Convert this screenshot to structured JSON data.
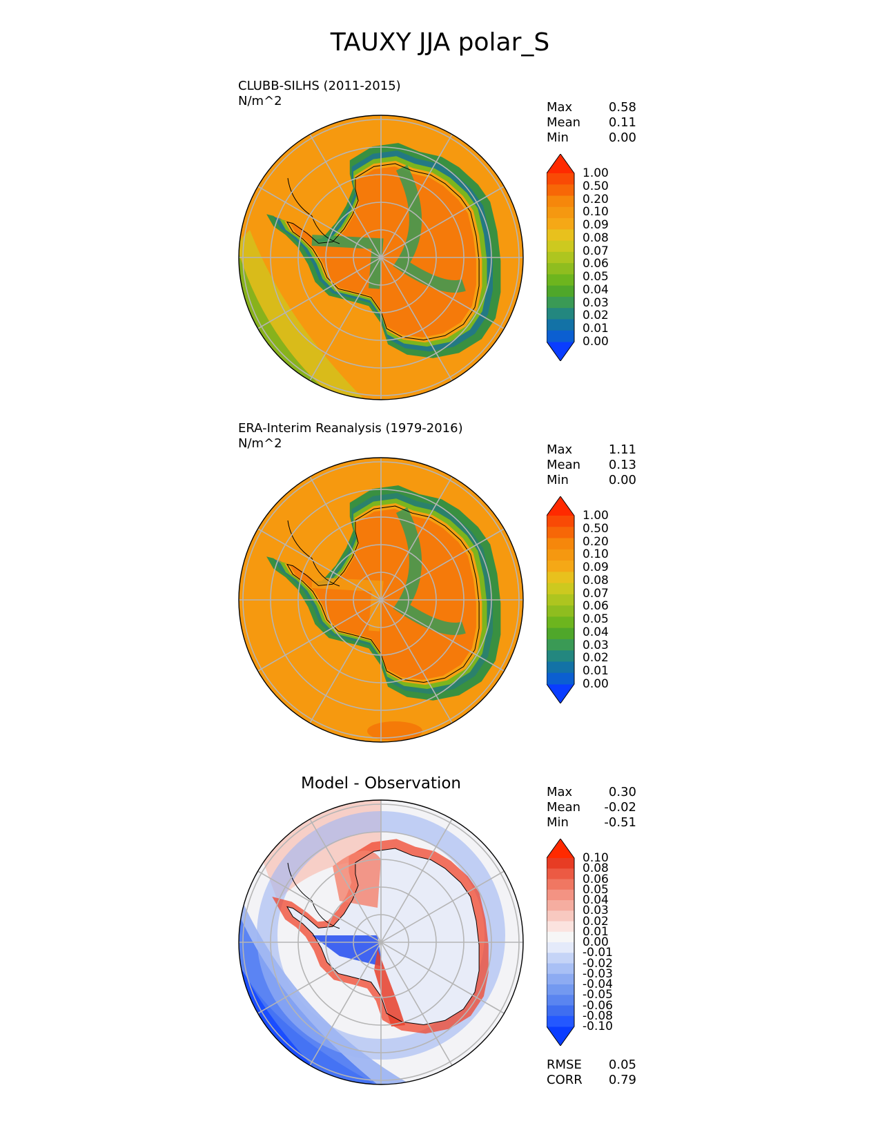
{
  "figure": {
    "title": "TAUXY JJA polar_S"
  },
  "colors": {
    "seq": [
      "#0a3dff",
      "#0b5fd1",
      "#1372a6",
      "#23877f",
      "#3a9a55",
      "#4fa72a",
      "#6db51e",
      "#8fbd1f",
      "#aec51f",
      "#cdc91f",
      "#e8c11d",
      "#f5a816",
      "#f59810",
      "#f6870b",
      "#f76707",
      "#f94a05",
      "#ff2a00"
    ],
    "land_outline": "#000000",
    "grid": "#b5b5b5"
  },
  "panels": [
    {
      "title": "CLUBB-SILHS (2011-2015)",
      "units": "N/m^2",
      "stats": [
        {
          "label": "Max",
          "value": "0.58"
        },
        {
          "label": "Mean",
          "value": "0.11"
        },
        {
          "label": "Min",
          "value": "0.00"
        }
      ],
      "colorbar": {
        "type": "sequential",
        "levels": [
          "1.00",
          "0.50",
          "0.20",
          "0.10",
          "0.09",
          "0.08",
          "0.07",
          "0.06",
          "0.05",
          "0.04",
          "0.03",
          "0.02",
          "0.01",
          "0.00"
        ]
      },
      "field_variant": "model"
    },
    {
      "title": "ERA-Interim Reanalysis (1979-2016)",
      "units": "N/m^2",
      "stats": [
        {
          "label": "Max",
          "value": "1.11"
        },
        {
          "label": "Mean",
          "value": "0.13"
        },
        {
          "label": "Min",
          "value": "0.00"
        }
      ],
      "colorbar": {
        "type": "sequential",
        "levels": [
          "1.00",
          "0.50",
          "0.20",
          "0.10",
          "0.09",
          "0.08",
          "0.07",
          "0.06",
          "0.05",
          "0.04",
          "0.03",
          "0.02",
          "0.01",
          "0.00"
        ]
      },
      "field_variant": "obs"
    },
    {
      "title": "Model - Observation",
      "units": "",
      "stats": [
        {
          "label": "Max",
          "value": "0.30"
        },
        {
          "label": "Mean",
          "value": "-0.02"
        },
        {
          "label": "Min",
          "value": "-0.51"
        }
      ],
      "extra_stats": [
        {
          "label": "RMSE",
          "value": "0.05"
        },
        {
          "label": "CORR",
          "value": "0.79"
        }
      ],
      "colorbar": {
        "type": "diverging",
        "levels": [
          "0.10",
          "0.08",
          "0.06",
          "0.05",
          "0.04",
          "0.03",
          "0.02",
          "0.01",
          "0.00",
          "-0.01",
          "-0.02",
          "-0.03",
          "-0.04",
          "-0.05",
          "-0.06",
          "-0.08",
          "-0.10"
        ]
      },
      "field_variant": "diff"
    }
  ],
  "chart_data": [
    {
      "type": "heatmap",
      "title": "CLUBB-SILHS (2011-2015)",
      "units": "N/m^2",
      "projection": "south polar stereographic",
      "max": 0.58,
      "mean": 0.11,
      "min": 0.0,
      "color_levels": [
        0.0,
        0.01,
        0.02,
        0.03,
        0.04,
        0.05,
        0.06,
        0.07,
        0.08,
        0.09,
        0.1,
        0.2,
        0.5,
        1.0
      ]
    },
    {
      "type": "heatmap",
      "title": "ERA-Interim Reanalysis (1979-2016)",
      "units": "N/m^2",
      "projection": "south polar stereographic",
      "max": 1.11,
      "mean": 0.13,
      "min": 0.0,
      "color_levels": [
        0.0,
        0.01,
        0.02,
        0.03,
        0.04,
        0.05,
        0.06,
        0.07,
        0.08,
        0.09,
        0.1,
        0.2,
        0.5,
        1.0
      ]
    },
    {
      "type": "heatmap",
      "title": "Model - Observation",
      "projection": "south polar stereographic",
      "max": 0.3,
      "mean": -0.02,
      "min": -0.51,
      "rmse": 0.05,
      "corr": 0.79,
      "color_levels": [
        -0.1,
        -0.08,
        -0.06,
        -0.05,
        -0.04,
        -0.03,
        -0.02,
        -0.01,
        0.0,
        0.01,
        0.02,
        0.03,
        0.04,
        0.05,
        0.06,
        0.08,
        0.1
      ]
    }
  ]
}
